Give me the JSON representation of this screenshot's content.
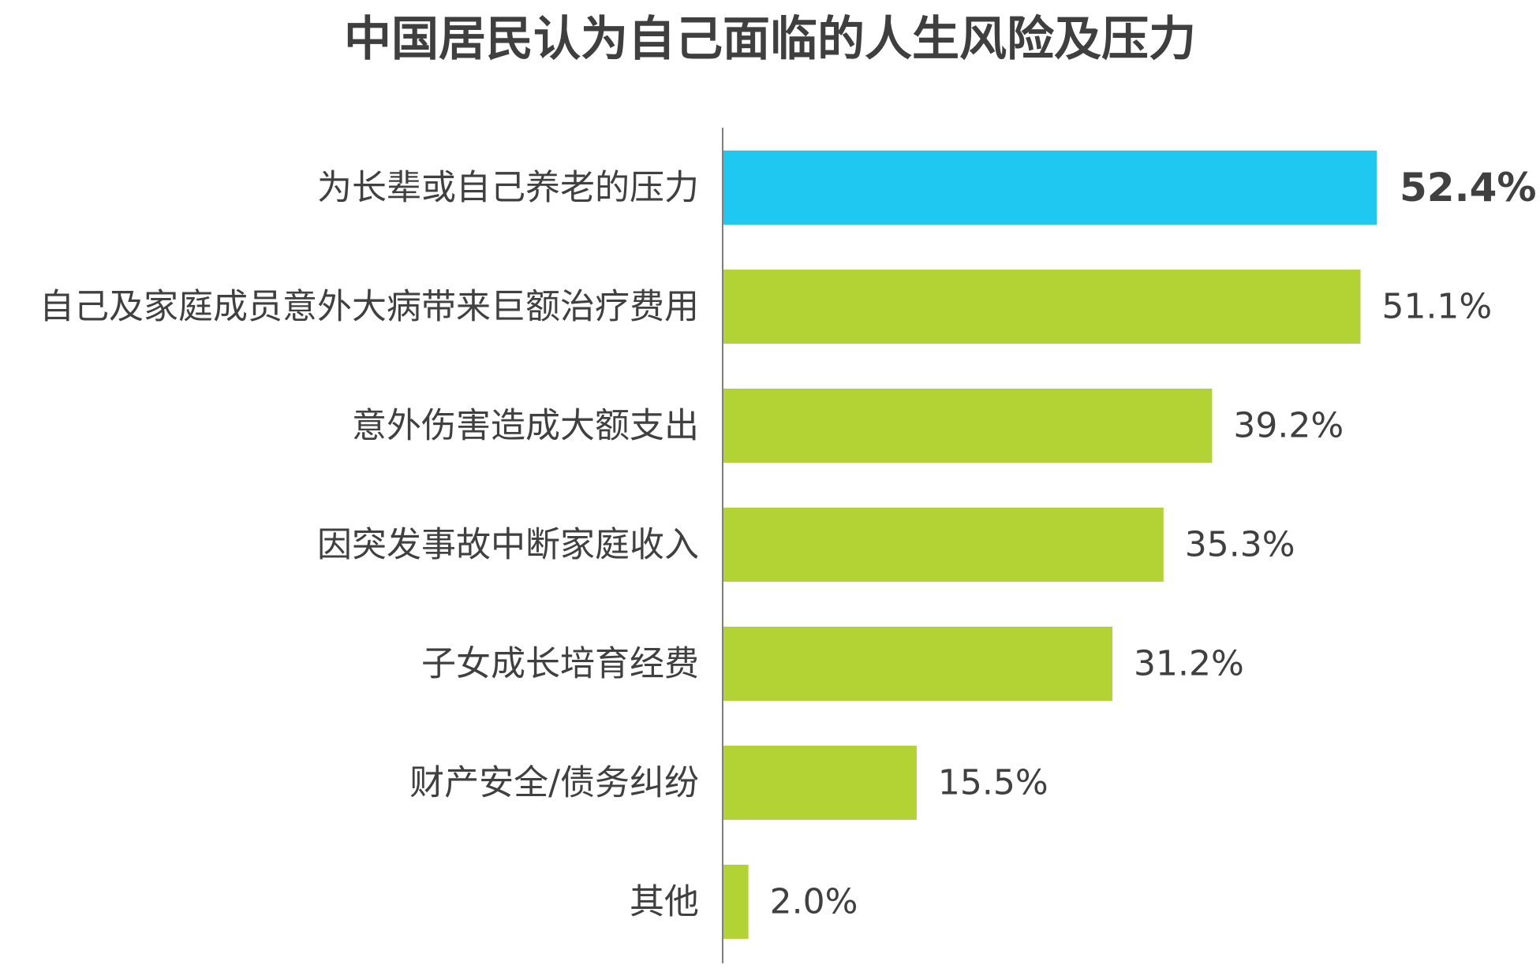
{
  "chart_data": {
    "type": "bar",
    "orientation": "horizontal",
    "title": "中国居民认为自己面临的人生风险及压力",
    "categories": [
      "为长辈或自己养老的压力",
      "自己及家庭成员意外大病带来巨额治疗费用",
      "意外伤害造成大额支出",
      "因突发事故中断家庭收入",
      "子女成长培育经费",
      "财产安全/债务纠纷",
      "其他"
    ],
    "values": [
      52.4,
      51.1,
      39.2,
      35.3,
      31.2,
      15.5,
      2.0
    ],
    "value_labels": [
      "52.4%",
      "51.1%",
      "39.2%",
      "35.3%",
      "31.2%",
      "15.5%",
      "2.0%"
    ],
    "unit": "%",
    "highlight_index": 0,
    "grid": false,
    "colors": {
      "highlight": "#1FC8F0",
      "default": "#B3D234",
      "axis": "#7f7f7f",
      "text": "#404040"
    }
  }
}
